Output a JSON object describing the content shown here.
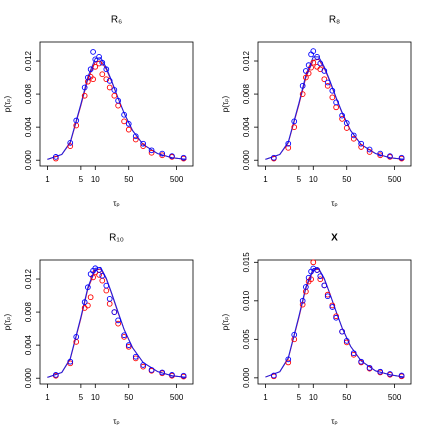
{
  "chart_data": [
    {
      "type": "scatter",
      "title": "R₆",
      "xlabel": "τₚ",
      "ylabel": "p(τₚ)",
      "log_x": true,
      "xlim": [
        0.7,
        1100
      ],
      "ylim": [
        -0.0007,
        0.0143
      ],
      "xticks": [
        1,
        5,
        10,
        50,
        500
      ],
      "yticks": [
        {
          "value": 0,
          "label": "0.000"
        },
        {
          "value": 0.004,
          "label": "0.004"
        },
        {
          "value": 0.008,
          "label": "0.008"
        },
        {
          "value": 0.012,
          "label": "0.012"
        }
      ],
      "series": [
        {
          "color": "#b0105a",
          "marker": "line",
          "x": [
            1,
            2,
            3,
            5,
            7,
            10,
            13,
            17,
            22,
            30,
            40,
            60,
            100,
            200,
            400,
            800
          ],
          "values": [
            0.0001,
            0.0007,
            0.0021,
            0.0066,
            0.0098,
            0.0119,
            0.012,
            0.011,
            0.0095,
            0.0075,
            0.0057,
            0.0036,
            0.0019,
            0.0008,
            0.0003,
            0.0001
          ]
        },
        {
          "color": "#2020e0",
          "marker": "line",
          "x": [
            1,
            2,
            3,
            5,
            7,
            10,
            13,
            17,
            22,
            30,
            40,
            60,
            100,
            200,
            400,
            800
          ],
          "values": [
            0.0001,
            0.0007,
            0.0022,
            0.0068,
            0.0101,
            0.0123,
            0.0124,
            0.0112,
            0.0096,
            0.0075,
            0.0057,
            0.0036,
            0.0019,
            0.0008,
            0.0003,
            0.0001
          ]
        },
        {
          "color": "#ff0000",
          "marker": "circle",
          "x": [
            1.5,
            3,
            4,
            6,
            7,
            8,
            9,
            10,
            12,
            14,
            17,
            20,
            25,
            30,
            40,
            50,
            70,
            100,
            150,
            250,
            400,
            700
          ],
          "values": [
            0.0002,
            0.0017,
            0.0042,
            0.0078,
            0.0095,
            0.0101,
            0.0098,
            0.0113,
            0.0117,
            0.0104,
            0.0098,
            0.0088,
            0.0078,
            0.0066,
            0.0047,
            0.0037,
            0.0025,
            0.0017,
            0.0009,
            0.0006,
            0.0004,
            0.0002
          ]
        },
        {
          "color": "#0000ff",
          "marker": "circle",
          "x": [
            1.5,
            3,
            4,
            6,
            7,
            8,
            9,
            10,
            12,
            14,
            17,
            20,
            25,
            30,
            40,
            50,
            70,
            100,
            150,
            250,
            400,
            700
          ],
          "values": [
            0.0004,
            0.0021,
            0.0048,
            0.0088,
            0.01,
            0.011,
            0.0131,
            0.0122,
            0.0125,
            0.0118,
            0.011,
            0.0096,
            0.0085,
            0.0072,
            0.0055,
            0.0044,
            0.0029,
            0.002,
            0.0012,
            0.0008,
            0.0005,
            0.0003
          ]
        }
      ]
    },
    {
      "type": "scatter",
      "title": "R₈",
      "xlabel": "τₚ",
      "ylabel": "p(τₚ)",
      "log_x": true,
      "xlim": [
        0.7,
        1100
      ],
      "ylim": [
        -0.0007,
        0.0143
      ],
      "xticks": [
        1,
        5,
        10,
        50,
        500
      ],
      "yticks": [
        {
          "value": 0,
          "label": "0.000"
        },
        {
          "value": 0.004,
          "label": "0.004"
        },
        {
          "value": 0.008,
          "label": "0.008"
        },
        {
          "value": 0.012,
          "label": "0.012"
        }
      ],
      "series": [
        {
          "color": "#b0105a",
          "marker": "line",
          "x": [
            1,
            2,
            3,
            5,
            7,
            10,
            13,
            17,
            22,
            30,
            40,
            60,
            100,
            200,
            400,
            800
          ],
          "values": [
            0.0001,
            0.0007,
            0.0021,
            0.0067,
            0.01,
            0.0121,
            0.0122,
            0.0111,
            0.0096,
            0.0075,
            0.0057,
            0.0036,
            0.0019,
            0.0008,
            0.0003,
            0.0001
          ]
        },
        {
          "color": "#2020e0",
          "marker": "line",
          "x": [
            1,
            2,
            3,
            5,
            7,
            10,
            13,
            17,
            22,
            30,
            40,
            60,
            100,
            200,
            400,
            800
          ],
          "values": [
            0.0001,
            0.0007,
            0.0022,
            0.0069,
            0.0103,
            0.0125,
            0.0125,
            0.0113,
            0.0097,
            0.0076,
            0.0058,
            0.0036,
            0.0019,
            0.0008,
            0.0003,
            0.0001
          ]
        },
        {
          "color": "#ff0000",
          "marker": "circle",
          "x": [
            1.5,
            3,
            4,
            6,
            7,
            8,
            9,
            10,
            12,
            14,
            17,
            20,
            25,
            30,
            40,
            50,
            70,
            100,
            150,
            250,
            400,
            700
          ],
          "values": [
            0.0002,
            0.0015,
            0.004,
            0.008,
            0.01,
            0.0105,
            0.0112,
            0.0118,
            0.0113,
            0.011,
            0.0098,
            0.009,
            0.0076,
            0.0064,
            0.005,
            0.0039,
            0.0026,
            0.0016,
            0.001,
            0.0006,
            0.0004,
            0.0002
          ]
        },
        {
          "color": "#0000ff",
          "marker": "circle",
          "x": [
            1.5,
            3,
            4,
            6,
            7,
            8,
            9,
            10,
            12,
            14,
            17,
            20,
            25,
            30,
            40,
            50,
            70,
            100,
            150,
            250,
            400,
            700
          ],
          "values": [
            0.0003,
            0.002,
            0.0047,
            0.009,
            0.0108,
            0.0115,
            0.0128,
            0.0132,
            0.0125,
            0.0117,
            0.0108,
            0.0094,
            0.0084,
            0.007,
            0.0054,
            0.0045,
            0.003,
            0.002,
            0.0013,
            0.0008,
            0.0005,
            0.0003
          ]
        }
      ]
    },
    {
      "type": "scatter",
      "title": "R₁₀",
      "xlabel": "τₚ",
      "ylabel": "p(τₚ)",
      "log_x": true,
      "xlim": [
        0.7,
        1100
      ],
      "ylim": [
        -0.0007,
        0.0143
      ],
      "xticks": [
        1,
        5,
        10,
        50,
        500
      ],
      "yticks": [
        {
          "value": 0,
          "label": "0.000"
        },
        {
          "value": 0.004,
          "label": "0.004"
        },
        {
          "value": 0.008,
          "label": "0.008"
        },
        {
          "value": 0.012,
          "label": "0.012"
        }
      ],
      "series": [
        {
          "color": "#b0105a",
          "marker": "line",
          "x": [
            1,
            2,
            3,
            5,
            7,
            10,
            13,
            17,
            22,
            30,
            40,
            60,
            100,
            200,
            400,
            800
          ],
          "values": [
            0.0001,
            0.0007,
            0.0023,
            0.0072,
            0.0108,
            0.0131,
            0.0132,
            0.012,
            0.0102,
            0.0079,
            0.0059,
            0.0037,
            0.0019,
            0.0008,
            0.0003,
            0.0001
          ]
        },
        {
          "color": "#2020e0",
          "marker": "line",
          "x": [
            1,
            2,
            3,
            5,
            7,
            10,
            13,
            17,
            22,
            30,
            40,
            60,
            100,
            200,
            400,
            800
          ],
          "values": [
            0.0001,
            0.0007,
            0.0024,
            0.0074,
            0.011,
            0.0133,
            0.0134,
            0.0121,
            0.0103,
            0.008,
            0.0059,
            0.0037,
            0.0019,
            0.0008,
            0.0003,
            0.0001
          ]
        },
        {
          "color": "#ff0000",
          "marker": "circle",
          "x": [
            1.5,
            3,
            4,
            6,
            7,
            8,
            9,
            10,
            12,
            14,
            17,
            20,
            25,
            30,
            40,
            50,
            70,
            100,
            150,
            250,
            400,
            700
          ],
          "values": [
            0.0003,
            0.0018,
            0.0044,
            0.0085,
            0.0088,
            0.0098,
            0.0122,
            0.0128,
            0.0125,
            0.0118,
            0.0106,
            0.009,
            0.008,
            0.0066,
            0.005,
            0.0038,
            0.0024,
            0.0014,
            0.0009,
            0.0006,
            0.0003,
            0.0002
          ]
        },
        {
          "color": "#0000ff",
          "marker": "circle",
          "x": [
            1.5,
            3,
            4,
            6,
            7,
            8,
            9,
            10,
            12,
            14,
            17,
            20,
            25,
            30,
            40,
            50,
            70,
            100,
            150,
            250,
            400,
            700
          ],
          "values": [
            0.0004,
            0.002,
            0.005,
            0.0092,
            0.011,
            0.0126,
            0.013,
            0.0133,
            0.0131,
            0.0124,
            0.0112,
            0.0096,
            0.008,
            0.007,
            0.0052,
            0.004,
            0.0026,
            0.0016,
            0.001,
            0.0007,
            0.0004,
            0.0003
          ]
        }
      ]
    },
    {
      "type": "scatter",
      "title": "X",
      "xlabel": "τₚ",
      "ylabel": "p(τₚ)",
      "log_x": true,
      "xlim": [
        0.7,
        1100
      ],
      "ylim": [
        -0.0008,
        0.0153
      ],
      "xticks": [
        1,
        5,
        10,
        50,
        500
      ],
      "yticks": [
        {
          "value": 0,
          "label": "0.000"
        },
        {
          "value": 0.005,
          "label": "0.005"
        },
        {
          "value": 0.01,
          "label": "0.010"
        },
        {
          "value": 0.015,
          "label": "0.015"
        }
      ],
      "series": [
        {
          "color": "#b0105a",
          "marker": "line",
          "x": [
            1,
            2,
            3,
            5,
            7,
            10,
            13,
            17,
            22,
            30,
            40,
            60,
            100,
            200,
            400,
            800
          ],
          "values": [
            0.0001,
            0.0008,
            0.0025,
            0.0078,
            0.0116,
            0.014,
            0.0141,
            0.0128,
            0.011,
            0.0086,
            0.0065,
            0.0041,
            0.0022,
            0.0009,
            0.0004,
            0.0001
          ]
        },
        {
          "color": "#2020e0",
          "marker": "line",
          "x": [
            1,
            2,
            3,
            5,
            7,
            10,
            13,
            17,
            22,
            30,
            40,
            60,
            100,
            200,
            400,
            800
          ],
          "values": [
            0.0001,
            0.0008,
            0.0026,
            0.008,
            0.0118,
            0.0142,
            0.0142,
            0.0129,
            0.011,
            0.0086,
            0.0065,
            0.0041,
            0.0022,
            0.0009,
            0.0004,
            0.0001
          ]
        },
        {
          "color": "#ff0000",
          "marker": "circle",
          "x": [
            1.5,
            3,
            4,
            6,
            7,
            8,
            9,
            10,
            12,
            14,
            17,
            20,
            25,
            30,
            40,
            50,
            70,
            100,
            150,
            250,
            400,
            700
          ],
          "values": [
            0.0002,
            0.002,
            0.005,
            0.0095,
            0.0112,
            0.0125,
            0.0128,
            0.015,
            0.014,
            0.0128,
            0.012,
            0.0108,
            0.0094,
            0.008,
            0.006,
            0.0046,
            0.003,
            0.002,
            0.0012,
            0.0007,
            0.0004,
            0.0002
          ]
        },
        {
          "color": "#0000ff",
          "marker": "circle",
          "x": [
            1.5,
            3,
            4,
            6,
            7,
            8,
            9,
            10,
            12,
            14,
            17,
            20,
            25,
            30,
            40,
            50,
            70,
            100,
            150,
            250,
            400,
            700
          ],
          "values": [
            0.0003,
            0.0024,
            0.0056,
            0.01,
            0.0118,
            0.013,
            0.0138,
            0.0142,
            0.014,
            0.0132,
            0.012,
            0.0106,
            0.0092,
            0.0078,
            0.006,
            0.0048,
            0.0032,
            0.0021,
            0.0013,
            0.0008,
            0.0005,
            0.0003
          ]
        }
      ]
    }
  ]
}
